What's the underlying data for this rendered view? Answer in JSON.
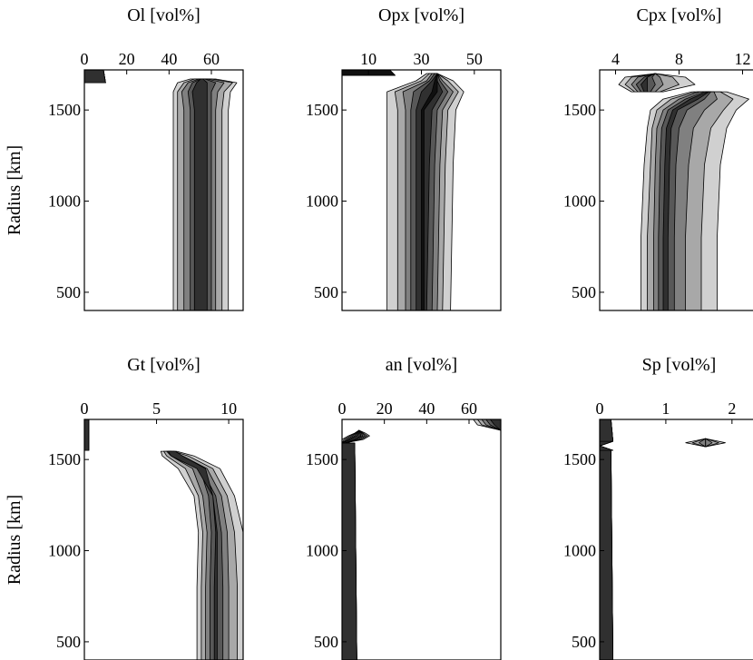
{
  "figure": {
    "ylabel": "Radius [km]"
  },
  "chart_data": [
    {
      "type": "contour",
      "title": "Ol [vol%]",
      "xlabel": "",
      "ylabel": "Radius [km]",
      "x_ticks": [
        0,
        20,
        40,
        60
      ],
      "xlim": [
        0,
        75
      ],
      "y_ticks": [
        500,
        1000,
        1500
      ],
      "ylim": [
        400,
        1720
      ],
      "fill_colors": [
        "#d0d0d0",
        "#a8a8a8",
        "#808080",
        "#585858",
        "#303030"
      ],
      "features": [
        {
          "radius": [
            1650,
            1720
          ],
          "left": [
            0,
            0,
            0,
            0,
            0
          ],
          "right": [
            10,
            9,
            8,
            7,
            6
          ]
        },
        {
          "radius": [
            400,
            1500,
            1600,
            1650,
            1670
          ],
          "left": [
            [
              42,
              44,
              47,
              50,
              52
            ],
            [
              42,
              44,
              47,
              50,
              52
            ],
            [
              42,
              44,
              46,
              49,
              51
            ],
            [
              44,
              47,
              49,
              51,
              53
            ],
            [
              50,
              52,
              54,
              55,
              55
            ]
          ],
          "right": [
            [
              68,
              65,
              62,
              60,
              58
            ],
            [
              68,
              65,
              62,
              60,
              58
            ],
            [
              69,
              66,
              63,
              60,
              58
            ],
            [
              72,
              70,
              66,
              62,
              58
            ],
            [
              62,
              60,
              58,
              57,
              56
            ]
          ]
        }
      ]
    },
    {
      "type": "contour",
      "title": "Opx [vol%]",
      "xlabel": "",
      "ylabel": "",
      "x_ticks": [
        10,
        30,
        50
      ],
      "xlim": [
        0,
        60
      ],
      "y_ticks": [
        500,
        1000,
        1500
      ],
      "ylim": [
        400,
        1720
      ],
      "fill_colors": [
        "#d0d0d0",
        "#a8a8a8",
        "#808080",
        "#585858",
        "#303030",
        "#101010"
      ],
      "features": [
        {
          "radius": [
            1690,
            1720
          ],
          "left": [
            0,
            0,
            0,
            0,
            0
          ],
          "right": [
            20,
            18,
            16,
            14,
            12
          ]
        },
        {
          "radius": [
            400,
            1200,
            1500,
            1600,
            1660,
            1700
          ],
          "left": [
            [
              17,
              21,
              24,
              26,
              28,
              30
            ],
            [
              17,
              21,
              24,
              26,
              28,
              30
            ],
            [
              17,
              21,
              24,
              26,
              28,
              30
            ],
            [
              17,
              20,
              23,
              27,
              30,
              34
            ],
            [
              28,
              30,
              32,
              33,
              34,
              35
            ],
            [
              32,
              33,
              34,
              35,
              36,
              36
            ]
          ],
          "right": [
            [
              41,
              38,
              36,
              34,
              32,
              31
            ],
            [
              42,
              39,
              37,
              35,
              33,
              31
            ],
            [
              43,
              40,
              38,
              36,
              34,
              31
            ],
            [
              46,
              44,
              42,
              40,
              38,
              36
            ],
            [
              42,
              40,
              38,
              37,
              36,
              36
            ],
            [
              36,
              36,
              36,
              36,
              36,
              36
            ]
          ]
        }
      ]
    },
    {
      "type": "contour",
      "title": "Cpx [vol%]",
      "xlabel": "",
      "ylabel": "",
      "x_ticks": [
        4,
        8,
        12
      ],
      "xlim": [
        3,
        13
      ],
      "y_ticks": [
        500,
        1000,
        1500
      ],
      "ylim": [
        400,
        1720
      ],
      "fill_colors": [
        "#d0d0d0",
        "#a8a8a8",
        "#808080",
        "#585858",
        "#303030"
      ],
      "features": [
        {
          "radius": [
            400,
            800,
            1200,
            1400,
            1500,
            1560,
            1600
          ],
          "left": [
            [
              5.6,
              6.0,
              6.4,
              6.7,
              7.0
            ],
            [
              5.6,
              6.0,
              6.4,
              6.7,
              7.0
            ],
            [
              5.8,
              6.2,
              6.5,
              6.8,
              7.1
            ],
            [
              6.0,
              6.3,
              6.6,
              6.9,
              7.2
            ],
            [
              6.2,
              6.6,
              7.0,
              7.3,
              7.6
            ],
            [
              7.0,
              7.5,
              8.0,
              8.4,
              8.7
            ],
            [
              8.8,
              9.1,
              9.3,
              9.6,
              9.8
            ]
          ],
          "right": [
            [
              10.4,
              9.4,
              8.4,
              7.7,
              7.3
            ],
            [
              10.4,
              9.4,
              8.4,
              7.7,
              7.3
            ],
            [
              10.6,
              9.6,
              8.6,
              7.8,
              7.4
            ],
            [
              11.0,
              10.0,
              8.9,
              8.0,
              7.5
            ],
            [
              11.6,
              10.8,
              9.6,
              8.5,
              7.9
            ],
            [
              12.4,
              11.4,
              10.4,
              9.6,
              9.2
            ],
            [
              11.0,
              10.6,
              10.2,
              10.0,
              9.9
            ]
          ]
        },
        {
          "radius": [
            1600,
            1640,
            1680,
            1700
          ],
          "left": [
            [
              5.0,
              5.2,
              5.4,
              5.6,
              5.8
            ],
            [
              4.2,
              4.6,
              5.0,
              5.3,
              5.6
            ],
            [
              4.6,
              5.0,
              5.4,
              5.8,
              6.0
            ],
            [
              6.5,
              6.5,
              6.5,
              6.5,
              6.5
            ]
          ],
          "right": [
            [
              7.0,
              6.8,
              6.5,
              6.2,
              6.0
            ],
            [
              9.0,
              8.0,
              7.0,
              6.5,
              6.0
            ],
            [
              8.4,
              7.6,
              6.8,
              6.3,
              6.0
            ],
            [
              6.5,
              6.5,
              6.5,
              6.5,
              6.5
            ]
          ]
        }
      ]
    },
    {
      "type": "contour",
      "title": "Gt [vol%]",
      "xlabel": "",
      "ylabel": "Radius [km]",
      "x_ticks": [
        0,
        5,
        10
      ],
      "xlim": [
        0,
        11
      ],
      "y_ticks": [
        500,
        1000,
        1500
      ],
      "ylim": [
        400,
        1720
      ],
      "fill_colors": [
        "#d0d0d0",
        "#a8a8a8",
        "#808080",
        "#585858",
        "#303030"
      ],
      "features": [
        {
          "radius": [
            1550,
            1720
          ],
          "left": [
            0,
            0,
            0,
            0,
            0
          ],
          "right": [
            0.3,
            0.3,
            0.3,
            0.3,
            0.3
          ]
        },
        {
          "radius": [
            400,
            800,
            1100,
            1300,
            1450,
            1520,
            1545
          ],
          "left": [
            [
              7.8,
              8.1,
              8.4,
              8.7,
              9.0
            ],
            [
              7.8,
              8.1,
              8.4,
              8.7,
              9.0
            ],
            [
              7.9,
              8.2,
              8.5,
              8.8,
              9.1
            ],
            [
              7.6,
              7.9,
              8.2,
              8.6,
              8.9
            ],
            [
              6.5,
              7.0,
              7.5,
              8.0,
              8.4
            ],
            [
              5.4,
              5.7,
              6.0,
              6.4,
              6.8
            ],
            [
              5.3,
              5.5,
              5.7,
              6.0,
              6.3
            ]
          ],
          "right": [
            [
              11.2,
              10.6,
              10.0,
              9.6,
              9.2
            ],
            [
              11.2,
              10.6,
              10.0,
              9.6,
              9.2
            ],
            [
              11.0,
              10.4,
              9.9,
              9.5,
              9.2
            ],
            [
              10.4,
              9.9,
              9.5,
              9.1,
              8.9
            ],
            [
              9.4,
              8.9,
              8.5,
              8.1,
              7.8
            ],
            [
              7.6,
              7.2,
              6.8,
              6.4,
              6.0
            ],
            [
              6.4,
              6.2,
              6.0,
              5.9,
              5.8
            ]
          ]
        }
      ]
    },
    {
      "type": "contour",
      "title": "an [vol%]",
      "xlabel": "",
      "ylabel": "",
      "x_ticks": [
        0,
        20,
        40,
        60
      ],
      "xlim": [
        0,
        75
      ],
      "y_ticks": [
        500,
        1000,
        1500
      ],
      "ylim": [
        400,
        1720
      ],
      "fill_colors": [
        "#d0d0d0",
        "#a8a8a8",
        "#808080",
        "#585858",
        "#303030"
      ],
      "features": [
        {
          "radius": [
            400,
            1590
          ],
          "left": [
            0,
            0,
            0,
            0,
            0
          ],
          "right": [
            7,
            6,
            5,
            4,
            3
          ]
        },
        {
          "radius": [
            1590,
            1610,
            1630,
            1645,
            1660
          ],
          "left": [
            [
              0,
              0,
              0,
              0,
              0
            ],
            [
              0,
              1,
              2,
              3,
              4
            ],
            [
              3,
              4,
              5,
              6,
              7
            ],
            [
              6,
              6.5,
              7,
              7.5,
              8
            ],
            [
              8,
              8,
              8,
              8,
              8
            ]
          ],
          "right": [
            [
              1,
              1,
              1,
              1,
              1
            ],
            [
              10,
              9,
              8,
              7,
              6
            ],
            [
              13,
              12,
              11,
              10,
              9
            ],
            [
              11,
              10,
              9.5,
              9,
              8.5
            ],
            [
              8,
              8,
              8,
              8,
              8
            ]
          ]
        },
        {
          "radius": [
            1660,
            1690,
            1720
          ],
          "left": [
            [
              75,
              75,
              75,
              75,
              75
            ],
            [
              64,
              66,
              68,
              70,
              72
            ],
            [
              62,
              64,
              66,
              68,
              70
            ]
          ],
          "right": [
            75,
            75,
            75,
            75,
            75
          ]
        }
      ]
    },
    {
      "type": "contour",
      "title": "Sp [vol%]",
      "xlabel": "",
      "ylabel": "",
      "x_ticks": [
        0,
        1,
        2
      ],
      "xlim": [
        0,
        2.4
      ],
      "y_ticks": [
        500,
        1000,
        1500
      ],
      "ylim": [
        400,
        1720
      ],
      "fill_colors": [
        "#d0d0d0",
        "#a8a8a8",
        "#808080",
        "#585858",
        "#303030"
      ],
      "features": [
        {
          "radius": [
            400,
            1550
          ],
          "left": [
            0,
            0,
            0,
            0,
            0
          ],
          "right": [
            0.2,
            0.17,
            0.14,
            0.11,
            0.08
          ]
        },
        {
          "radius": [
            1550,
            1575,
            1600
          ],
          "left": [
            0,
            0,
            0
          ],
          "right": [
            [
              0.2,
              0.2,
              0.2,
              0.2,
              0.2
            ],
            [
              0,
              0,
              0,
              0,
              0
            ],
            [
              0.2,
              0.2,
              0.2,
              0.2,
              0.2
            ]
          ]
        },
        {
          "radius": [
            1600,
            1720
          ],
          "left": [
            0,
            0,
            0,
            0,
            0
          ],
          "right": [
            0.2,
            0.17,
            0.14,
            0.11,
            0.08
          ]
        },
        {
          "radius": [
            1570,
            1592,
            1615
          ],
          "left": [
            [
              1.6,
              1.6,
              1.6,
              1.6,
              1.6
            ],
            [
              1.3,
              1.4,
              1.5,
              1.6,
              1.6
            ],
            [
              1.6,
              1.6,
              1.6,
              1.6,
              1.6
            ]
          ],
          "right": [
            [
              1.6,
              1.6,
              1.6,
              1.6,
              1.6
            ],
            [
              1.9,
              1.8,
              1.7,
              1.6,
              1.6
            ],
            [
              1.6,
              1.6,
              1.6,
              1.6,
              1.6
            ]
          ]
        }
      ]
    }
  ]
}
